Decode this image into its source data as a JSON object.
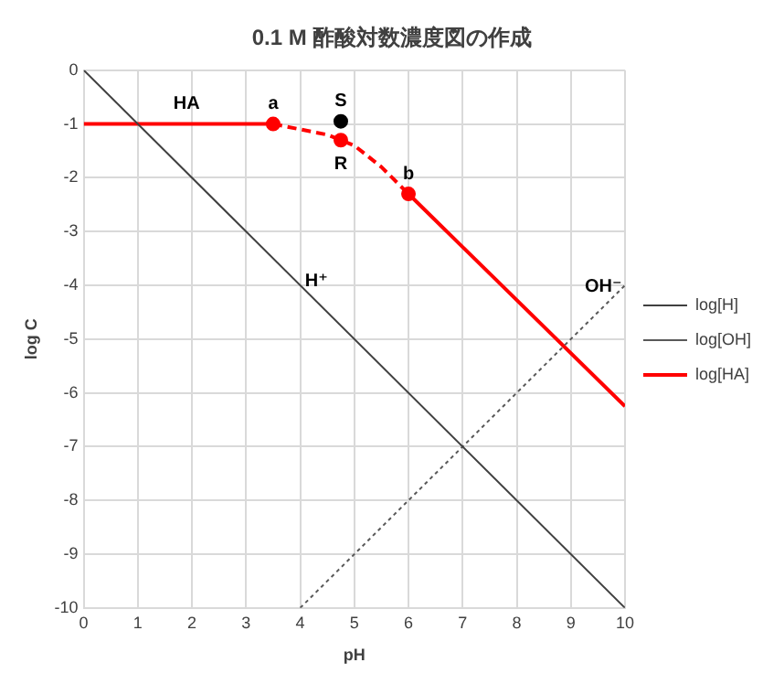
{
  "chart_data": {
    "type": "line",
    "title": "0.1 M 酢酸対数濃度図の作成",
    "xlabel": "pH",
    "ylabel": "log C",
    "xlim": [
      0,
      10
    ],
    "xticks": [
      0,
      1,
      2,
      3,
      4,
      5,
      6,
      7,
      8,
      9,
      10
    ],
    "ylim": [
      -10,
      0
    ],
    "yticks": [
      -10,
      -9,
      -8,
      -7,
      -6,
      -5,
      -4,
      -3,
      -2,
      -1,
      0
    ],
    "grid": true,
    "legend": "right",
    "marker": "none",
    "series": [
      {
        "name": "log[H]",
        "color": "#404040",
        "line_style": "solid",
        "x": [
          0,
          10
        ],
        "values": [
          0,
          -10
        ]
      },
      {
        "name": "log[OH]",
        "color": "#595959",
        "line_style": "dotted",
        "x": [
          4,
          10
        ],
        "values": [
          -10,
          -4
        ]
      },
      {
        "name": "log[HA]",
        "color": "#ff0000",
        "line_style": "solid",
        "x": [
          0,
          3.5,
          4.75,
          6,
          10
        ],
        "values": [
          -1,
          -1,
          null,
          -2.3,
          -6.25
        ]
      },
      {
        "color": "#ff0000",
        "line_style": "dashed",
        "x": [
          3.5,
          4,
          4.5,
          4.75,
          5,
          5.5,
          6
        ],
        "values": [
          -1.0,
          -1.1,
          -1.2,
          -1.3,
          -1.4,
          -1.8,
          -2.3
        ]
      },
      {
        "type": "scatter",
        "marker": "circle",
        "color": "#ff0000",
        "x": [
          3.5,
          4.75,
          6
        ],
        "values": [
          -1,
          -1.3,
          -2.3
        ]
      },
      {
        "type": "scatter",
        "marker": "circle",
        "color": "#000000",
        "x": [
          4.75
        ],
        "values": [
          -0.95
        ]
      }
    ],
    "annotations": [
      {
        "text": "HA",
        "x": 1.9,
        "y": -1
      },
      {
        "text": "a",
        "x": 3.5,
        "y": -1
      },
      {
        "text": "S",
        "x": 4.75,
        "y": -0.95
      },
      {
        "text": "R",
        "x": 4.75,
        "y": -1.3
      },
      {
        "text": "b",
        "x": 6.0,
        "y": -2.3
      },
      {
        "text": "H⁺",
        "x": 4.3,
        "y": -4.3
      },
      {
        "text": "OH⁻",
        "x": 9.6,
        "y": -4.4
      }
    ]
  }
}
